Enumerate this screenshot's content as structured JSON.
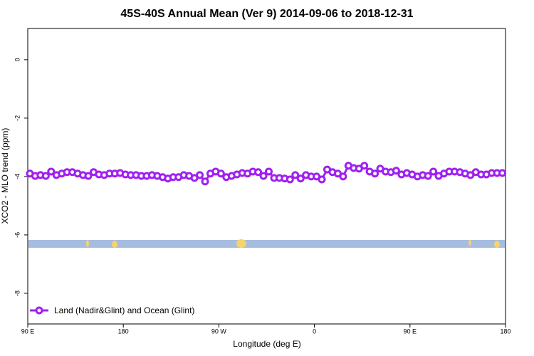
{
  "chart_data": {
    "type": "line",
    "title": "45S-40S Annual Mean (Ver 9)   2014-09-06 to 2018-12-31",
    "xlabel": "Longitude (deg E)",
    "ylabel": "XCO2 - MLO trend (ppm)",
    "xlim": [
      90,
      540
    ],
    "ylim": [
      -9.05,
      1.07
    ],
    "xticks": [
      {
        "value": 90,
        "label": "90 E"
      },
      180,
      {
        "value": 270,
        "label": "90 W"
      },
      {
        "value": 360,
        "label": "0"
      },
      {
        "value": 450,
        "label": "90 E"
      },
      {
        "value": 540,
        "label": "180"
      }
    ],
    "yticks": [
      0,
      -2,
      -4,
      -6,
      -8
    ],
    "legend": "bottom-left",
    "x": [
      92,
      97,
      102,
      107,
      112,
      117,
      122,
      127,
      132,
      137,
      142,
      147,
      152,
      157,
      162,
      167,
      172,
      177,
      182,
      187,
      192,
      197,
      202,
      207,
      212,
      217,
      222,
      227,
      232,
      237,
      242,
      247,
      252,
      257,
      262,
      267,
      272,
      277,
      282,
      287,
      292,
      297,
      302,
      307,
      312,
      317,
      322,
      327,
      332,
      337,
      342,
      347,
      352,
      357,
      362,
      367,
      372,
      377,
      382,
      387,
      392,
      397,
      402,
      407,
      412,
      417,
      422,
      427,
      432,
      437,
      442,
      447,
      452,
      457,
      462,
      467,
      472,
      477,
      482,
      487,
      492,
      497,
      502,
      507,
      512,
      517,
      522,
      527,
      532,
      537
    ],
    "series": [
      {
        "name": "Land (Nadir&Glint) and Ocean (Glint)",
        "color": "#a020f0",
        "values": [
          -3.9,
          -3.98,
          -3.95,
          -3.98,
          -3.83,
          -3.95,
          -3.9,
          -3.85,
          -3.85,
          -3.9,
          -3.95,
          -3.98,
          -3.85,
          -3.93,
          -3.95,
          -3.9,
          -3.9,
          -3.88,
          -3.93,
          -3.95,
          -3.95,
          -3.98,
          -3.98,
          -3.95,
          -3.98,
          -4.02,
          -4.07,
          -4.02,
          -4.02,
          -3.95,
          -3.98,
          -4.05,
          -3.95,
          -4.17,
          -3.9,
          -3.83,
          -3.9,
          -4.02,
          -3.98,
          -3.93,
          -3.88,
          -3.9,
          -3.83,
          -3.85,
          -3.98,
          -3.83,
          -4.05,
          -4.05,
          -4.07,
          -4.1,
          -3.95,
          -4.07,
          -3.95,
          -4.0,
          -4.0,
          -4.1,
          -3.76,
          -3.85,
          -3.9,
          -4.0,
          -3.63,
          -3.71,
          -3.73,
          -3.63,
          -3.83,
          -3.9,
          -3.73,
          -3.83,
          -3.85,
          -3.8,
          -3.93,
          -3.88,
          -3.93,
          -4.0,
          -3.95,
          -3.98,
          -3.83,
          -3.98,
          -3.9,
          -3.83,
          -3.83,
          -3.85,
          -3.9,
          -3.95,
          -3.85,
          -3.93,
          -3.93,
          -3.88,
          -3.88,
          -3.88
        ]
      }
    ]
  }
}
